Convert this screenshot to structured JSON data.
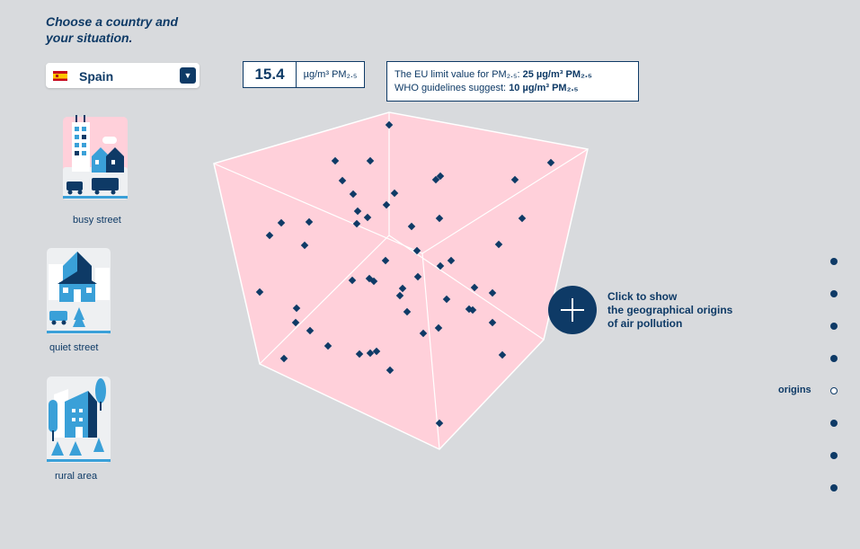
{
  "heading": {
    "line1": "Choose a country and",
    "line2": "your situation."
  },
  "country_select": {
    "value": "Spain",
    "flag_icon": "spain-flag-icon"
  },
  "measurement": {
    "value": "15.4",
    "unit": "µg/m³ PM₂.₅"
  },
  "limits": {
    "eu_label": "The EU limit value for PM₂.₅:",
    "eu_value": "25 µg/m³ PM₂.₅",
    "who_label": "WHO guidelines suggest:",
    "who_value": "10 µg/m³ PM₂.₅"
  },
  "situations": [
    {
      "label": "busy street",
      "icon": "busy-street-icon"
    },
    {
      "label": "quiet street",
      "icon": "quiet-street-icon"
    },
    {
      "label": "rural area",
      "icon": "rural-area-icon"
    }
  ],
  "origins_button": {
    "text_lines": [
      "Click to show",
      "the geographical origins",
      "of air pollution"
    ]
  },
  "nav": {
    "current_label": "origins"
  },
  "colors": {
    "accent": "#0e3a66",
    "cube_face": "#ffd0da",
    "background": "#d8dadd"
  }
}
